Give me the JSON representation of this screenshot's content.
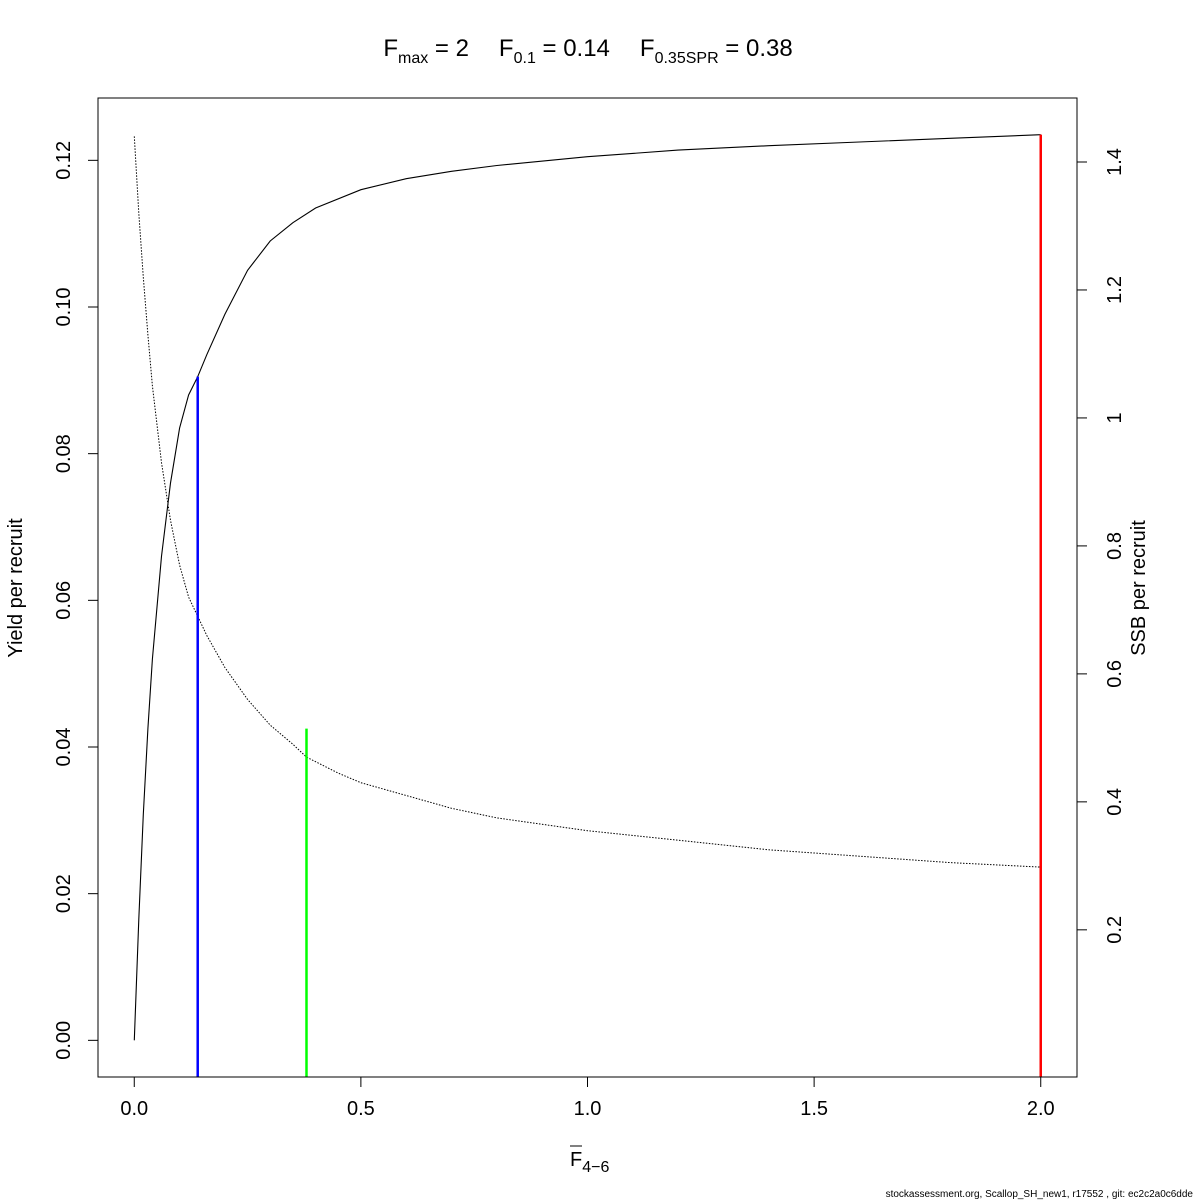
{
  "chart_data": {
    "type": "line",
    "title": {
      "parts": [
        {
          "symbol": "F",
          "subscript": "max",
          "value": "2"
        },
        {
          "symbol": "F",
          "subscript": "0.1",
          "value": "0.14"
        },
        {
          "symbol": "F",
          "subscript": "0.35SPR",
          "value": "0.38"
        }
      ]
    },
    "xlabel": {
      "symbol": "F",
      "subscript": "4−6"
    },
    "ylabel": "Yield per recruit",
    "y2label": "SSB per recruit",
    "xlim": [
      -0.08,
      2.08
    ],
    "ylim": [
      -0.005,
      0.1285
    ],
    "y2lim": [
      -0.03,
      1.5
    ],
    "xticks": [
      0.0,
      0.5,
      1.0,
      1.5,
      2.0
    ],
    "xtick_labels": [
      "0.0",
      "0.5",
      "1.0",
      "1.5",
      "2.0"
    ],
    "yticks": [
      0.0,
      0.02,
      0.04,
      0.06,
      0.08,
      0.1,
      0.12
    ],
    "ytick_labels": [
      "0.00",
      "0.02",
      "0.04",
      "0.06",
      "0.08",
      "0.10",
      "0.12"
    ],
    "y2ticks": [
      0.2,
      0.4,
      0.6,
      0.8,
      1.0,
      1.2,
      1.4
    ],
    "y2tick_labels": [
      "0.2",
      "0.4",
      "0.6",
      "0.8",
      "1",
      "1.2",
      "1.4"
    ],
    "grid": false,
    "series": [
      {
        "axis": "left",
        "style": "solid",
        "color": "#000000",
        "x": [
          0,
          0.01,
          0.02,
          0.03,
          0.04,
          0.06,
          0.08,
          0.1,
          0.12,
          0.14,
          0.16,
          0.2,
          0.25,
          0.3,
          0.35,
          0.4,
          0.5,
          0.6,
          0.7,
          0.8,
          1.0,
          1.2,
          1.4,
          1.6,
          1.8,
          2.0
        ],
        "y": [
          0.0,
          0.0165,
          0.0308,
          0.0425,
          0.052,
          0.066,
          0.076,
          0.0835,
          0.088,
          0.0905,
          0.0935,
          0.099,
          0.105,
          0.109,
          0.1115,
          0.1135,
          0.116,
          0.1175,
          0.1185,
          0.1193,
          0.1205,
          0.1214,
          0.122,
          0.1225,
          0.123,
          0.1235
        ]
      },
      {
        "axis": "right",
        "style": "dotted",
        "color": "#000000",
        "x": [
          0,
          0.01,
          0.02,
          0.03,
          0.04,
          0.06,
          0.08,
          0.1,
          0.12,
          0.14,
          0.16,
          0.2,
          0.25,
          0.3,
          0.35,
          0.38,
          0.45,
          0.5,
          0.6,
          0.7,
          0.8,
          1.0,
          1.2,
          1.4,
          1.6,
          1.8,
          2.0
        ],
        "y": [
          1.44,
          1.32,
          1.22,
          1.13,
          1.05,
          0.93,
          0.84,
          0.77,
          0.72,
          0.69,
          0.66,
          0.61,
          0.56,
          0.52,
          0.49,
          0.47,
          0.445,
          0.43,
          0.41,
          0.39,
          0.375,
          0.355,
          0.34,
          0.325,
          0.315,
          0.305,
          0.298
        ]
      }
    ],
    "reference_lines": [
      {
        "x": 0.14,
        "y_top": 0.0905,
        "color": "#0000ff"
      },
      {
        "x": 0.38,
        "y_top": 0.0425,
        "color": "#00ff00"
      },
      {
        "x": 2.0,
        "y_top": 0.1235,
        "color": "#ff0000"
      }
    ]
  },
  "footer": "stockassessment.org, Scallop_SH_new1, r17552 , git: ec2c2a0c6dde"
}
